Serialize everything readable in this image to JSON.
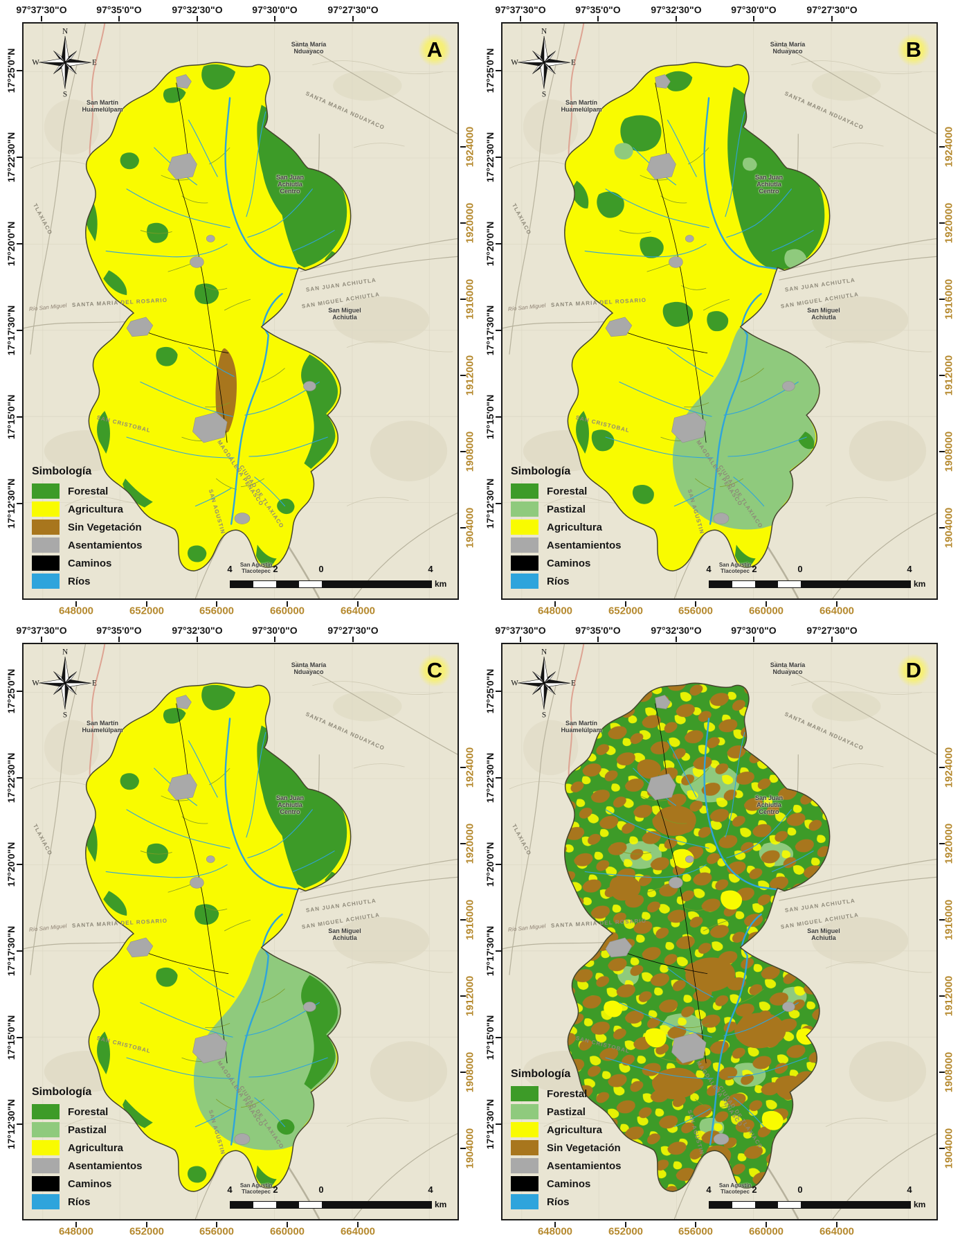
{
  "figure": {
    "description": "Four-panel land use and vegetation map set",
    "panel_letters": [
      "A",
      "B",
      "C",
      "D"
    ]
  },
  "colors": {
    "forestal": "#3d9b28",
    "pastizal": "#8fca7d",
    "agricultura": "#f9fb00",
    "sin_vegetacion": "#a8761d",
    "asentamientos": "#a9a9a9",
    "caminos": "#000000",
    "rios": "#2ea4dc",
    "axis_secondary": "#b5892e",
    "axis_primary": "#161616",
    "basemap": "#e9e5d3"
  },
  "axes": {
    "top_lon": [
      "97°37'30\"O",
      "97°35'0\"O",
      "97°32'30\"O",
      "97°30'0\"O",
      "97°27'30\"O"
    ],
    "left_lat": [
      "17°25'0\"N",
      "17°22'30\"N",
      "17°20'0\"N",
      "17°17'30\"N",
      "17°15'0\"N",
      "17°12'30\"N"
    ],
    "right_utm": [
      "1924000",
      "1920000",
      "1916000",
      "1912000",
      "1908000",
      "1904000"
    ],
    "bottom_utm": [
      "648000",
      "652000",
      "656000",
      "660000",
      "664000"
    ]
  },
  "compass": {
    "north": "N",
    "east": "E",
    "south": "S",
    "west": "W"
  },
  "places": {
    "santa_maria_nduayaco": "Santa María\nNduayaco",
    "san_martin_huamelulpam": "San Martín\nHuamelúlpam",
    "san_juan_achiutla_centro": "San Juan\nAchiutla\nCentro",
    "san_miguel_achiutla": "San Miguel\nAchiutla",
    "san_agustin_tlacotepec": "San Agustín\nTlacotepec"
  },
  "road_labels": {
    "santa_maria_nduayaco_road": "SANTA MARIA NDUAYACO",
    "san_juan_achiutla_road": "SAN JUAN ACHIUTLA",
    "san_miguel_achiutla_road": "SAN MIGUEL ACHIUTLA",
    "santa_maria_del_rosario_road": "SANTA MARIA DEL ROSARIO",
    "san_cristobal_road": "SAN CRISTOBAL",
    "tlaxiaco_road": "TLAXIACO",
    "san_agustin_road": "SAN AGUSTIN",
    "magdalena_road": "MAGDALENA PEÑASCO",
    "ciudad_tlaxiaco_road": "CIUDAD DE TLAXIACO",
    "rio_san_miguel": "Río San Miguel"
  },
  "legend_title": "Simbología",
  "scalebar": {
    "labels": [
      "4",
      "2",
      "0",
      "4"
    ],
    "unit": "km"
  },
  "panels": [
    {
      "letter": "A",
      "legend": [
        {
          "label": "Forestal",
          "color": "forestal"
        },
        {
          "label": "Agricultura",
          "color": "agricultura"
        },
        {
          "label": "Sin Vegetación",
          "color": "sin_vegetacion"
        },
        {
          "label": "Asentamientos",
          "color": "asentamientos"
        },
        {
          "label": "Caminos",
          "color": "caminos"
        },
        {
          "label": "Ríos",
          "color": "rios"
        }
      ]
    },
    {
      "letter": "B",
      "legend": [
        {
          "label": "Forestal",
          "color": "forestal"
        },
        {
          "label": "Pastizal",
          "color": "pastizal"
        },
        {
          "label": "Agricultura",
          "color": "agricultura"
        },
        {
          "label": "Asentamientos",
          "color": "asentamientos"
        },
        {
          "label": "Caminos",
          "color": "caminos"
        },
        {
          "label": "Ríos",
          "color": "rios"
        }
      ]
    },
    {
      "letter": "C",
      "legend": [
        {
          "label": "Forestal",
          "color": "forestal"
        },
        {
          "label": "Pastizal",
          "color": "pastizal"
        },
        {
          "label": "Agricultura",
          "color": "agricultura"
        },
        {
          "label": "Asentamientos",
          "color": "asentamientos"
        },
        {
          "label": "Caminos",
          "color": "caminos"
        },
        {
          "label": "Ríos",
          "color": "rios"
        }
      ]
    },
    {
      "letter": "D",
      "legend": [
        {
          "label": "Forestal",
          "color": "forestal"
        },
        {
          "label": "Pastizal",
          "color": "pastizal"
        },
        {
          "label": "Agricultura",
          "color": "agricultura"
        },
        {
          "label": "Sin Vegetación",
          "color": "sin_vegetacion"
        },
        {
          "label": "Asentamientos",
          "color": "asentamientos"
        },
        {
          "label": "Caminos",
          "color": "caminos"
        },
        {
          "label": "Ríos",
          "color": "rios"
        }
      ]
    }
  ]
}
